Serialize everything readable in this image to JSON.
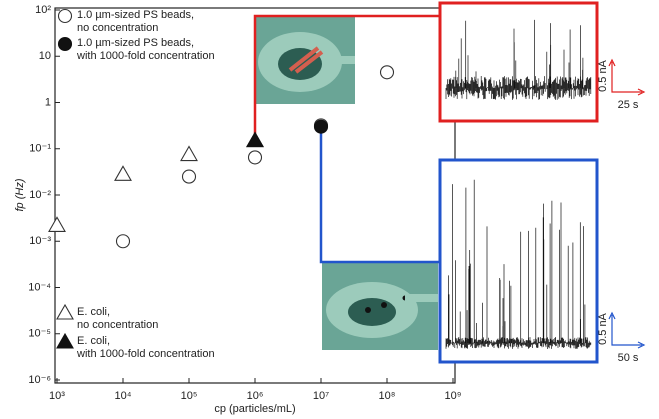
{
  "chart_data": {
    "type": "scatter",
    "x_label": "cp (particles/mL)",
    "y_label": "fp (Hz)",
    "log_x": true,
    "log_y": true,
    "xlim": [
      1000,
      1000000000
    ],
    "ylim": [
      1e-06,
      100
    ],
    "xticks": [
      {
        "value": 1000,
        "label": "10³"
      },
      {
        "value": 10000,
        "label": "10⁴"
      },
      {
        "value": 100000,
        "label": "10⁵"
      },
      {
        "value": 1000000,
        "label": "10⁶"
      },
      {
        "value": 10000000,
        "label": "10⁷"
      },
      {
        "value": 100000000,
        "label": "10⁸"
      },
      {
        "value": 1000000000,
        "label": "10⁹"
      }
    ],
    "yticks": [
      {
        "value": 1e-06,
        "label": "10⁻⁶"
      },
      {
        "value": 1e-05,
        "label": "10⁻⁵"
      },
      {
        "value": 0.0001,
        "label": "10⁻⁴"
      },
      {
        "value": 0.001,
        "label": "10⁻³"
      },
      {
        "value": 0.01,
        "label": "10⁻²"
      },
      {
        "value": 0.1,
        "label": "10⁻¹"
      },
      1,
      10,
      {
        "value": 100,
        "label": "10²"
      }
    ],
    "series": [
      {
        "name": "1.0 µm-sized PS beads,\nno concentration",
        "marker": "circle",
        "filled": false,
        "color": "#333333",
        "x": [
          10000,
          100000,
          1000000,
          10000000,
          100000000
        ],
        "values": [
          0.001,
          0.025,
          0.065,
          0.32,
          4.5
        ]
      },
      {
        "name": "1.0 µm-sized PS beads,\nwith 1000-fold concentration",
        "marker": "circle",
        "filled": true,
        "color": "#111111",
        "x": [
          10000000
        ],
        "values": [
          0.3
        ]
      },
      {
        "name": "E. coli,\nno concentration",
        "marker": "triangle",
        "filled": false,
        "color": "#333333",
        "x": [
          1000,
          10000,
          100000,
          1000000
        ],
        "values": [
          0.0022,
          0.028,
          0.075,
          0.15
        ]
      },
      {
        "name": "E. coli,\nwith 1000-fold concentration",
        "marker": "triangle",
        "filled": true,
        "color": "#111111",
        "x": [
          1000000
        ],
        "values": [
          0.15
        ]
      }
    ],
    "insets": [
      {
        "color": "#e02020",
        "y_scale": "0.5 nA",
        "x_scale": "25 s"
      },
      {
        "color": "#2255cc",
        "y_scale": "0.5 nA",
        "x_scale": "50 s"
      }
    ]
  }
}
